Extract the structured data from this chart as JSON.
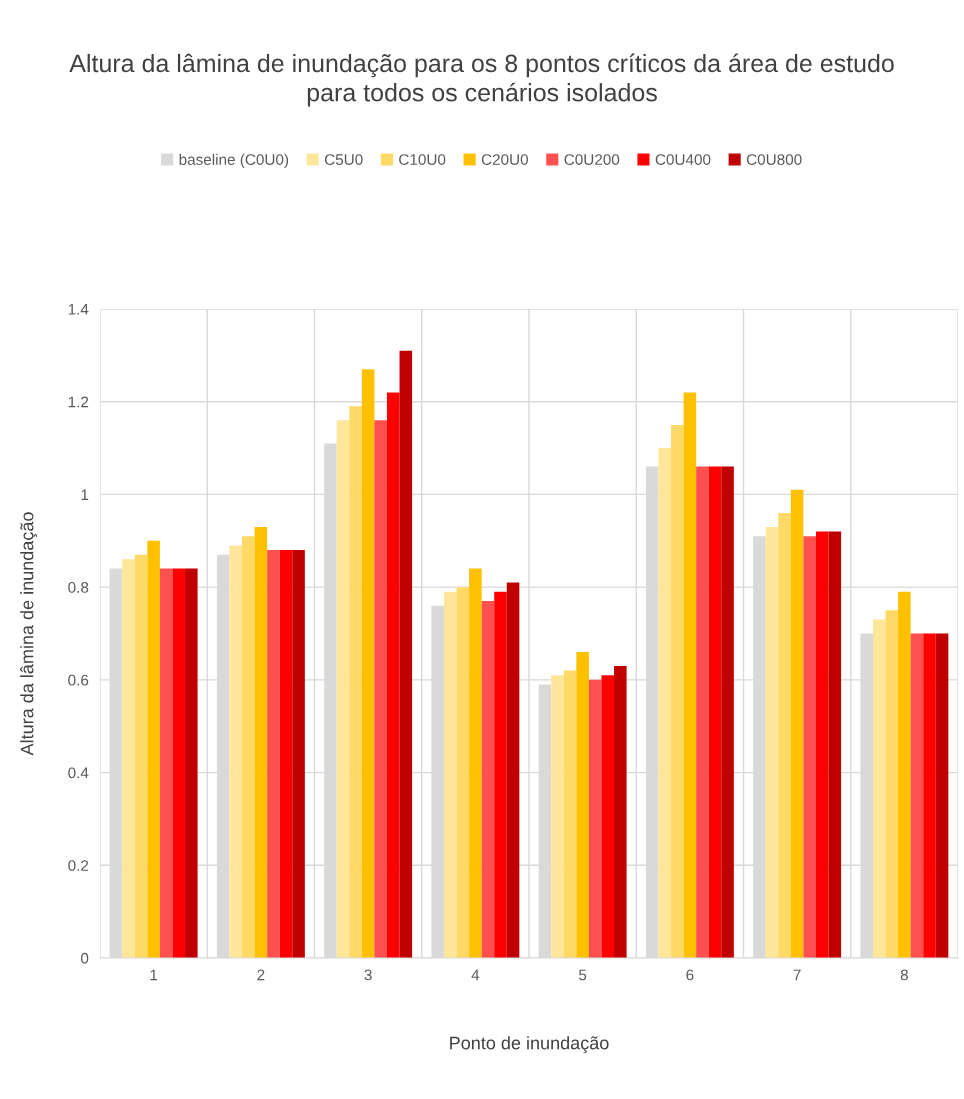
{
  "chart_data": {
    "type": "bar",
    "title": "Altura da lâmina de inundação para os 8 pontos críticos da área de estudo\npara todos os cenários isolados",
    "xlabel": "Ponto de inundação",
    "ylabel": "Altura da lâmina de inundação",
    "categories": [
      "1",
      "2",
      "3",
      "4",
      "5",
      "6",
      "7",
      "8"
    ],
    "series": [
      {
        "name": "baseline (C0U0)",
        "color": "#d9d9d9",
        "values": [
          0.84,
          0.87,
          1.11,
          0.76,
          0.59,
          1.06,
          0.91,
          0.7
        ]
      },
      {
        "name": "C5U0",
        "color": "#ffe699",
        "values": [
          0.86,
          0.89,
          1.16,
          0.79,
          0.61,
          1.1,
          0.93,
          0.73
        ]
      },
      {
        "name": "C10U0",
        "color": "#ffd966",
        "values": [
          0.87,
          0.91,
          1.19,
          0.8,
          0.62,
          1.15,
          0.96,
          0.75
        ]
      },
      {
        "name": "C20U0",
        "color": "#ffc000",
        "values": [
          0.9,
          0.93,
          1.27,
          0.84,
          0.66,
          1.22,
          1.01,
          0.79
        ]
      },
      {
        "name": "C0U200",
        "color": "#ff5050",
        "values": [
          0.84,
          0.88,
          1.16,
          0.77,
          0.6,
          1.06,
          0.91,
          0.7
        ]
      },
      {
        "name": "C0U400",
        "color": "#ff0000",
        "values": [
          0.84,
          0.88,
          1.22,
          0.79,
          0.61,
          1.06,
          0.92,
          0.7
        ]
      },
      {
        "name": "C0U800",
        "color": "#c00000",
        "values": [
          0.84,
          0.88,
          1.31,
          0.81,
          0.63,
          1.06,
          0.92,
          0.7
        ]
      }
    ],
    "ylim": [
      0,
      1.4
    ],
    "yticks": [
      0,
      0.2,
      0.4,
      0.6,
      0.8,
      1,
      1.2,
      1.4
    ],
    "grid": true,
    "legend": "top"
  }
}
